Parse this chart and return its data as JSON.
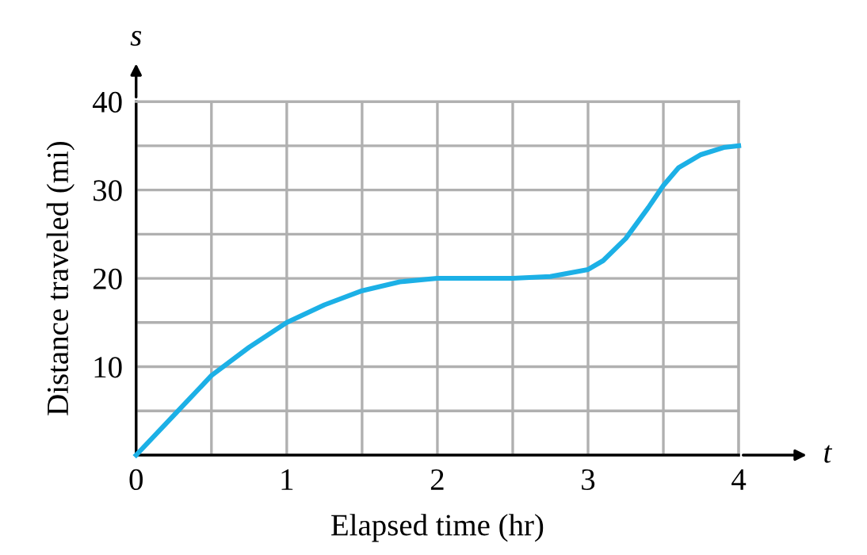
{
  "chart_data": {
    "type": "line",
    "xlabel": "Elapsed time (hr)",
    "ylabel": "Distance traveled (mi)",
    "annotations": [
      "s",
      "t"
    ],
    "x": [
      0,
      0.25,
      0.5,
      0.75,
      1,
      1.25,
      1.5,
      1.75,
      2,
      2.25,
      2.5,
      2.75,
      3,
      3.1,
      3.25,
      3.4,
      3.5,
      3.6,
      3.75,
      3.9,
      4
    ],
    "series": [
      {
        "color": "#1cb0e6",
        "values": [
          0,
          4.5,
          9,
          12.2,
          15,
          17,
          18.6,
          19.6,
          20,
          20,
          20,
          20.2,
          21,
          22,
          24.5,
          28,
          30.5,
          32.5,
          34,
          34.8,
          35
        ]
      }
    ],
    "xlim": [
      0,
      4
    ],
    "ylim": [
      0,
      40
    ],
    "xticks": [
      0,
      {
        "value": 0.5,
        "label": null
      },
      1,
      {
        "value": 1.5,
        "label": null
      },
      2,
      {
        "value": 2.5,
        "label": null
      },
      3,
      {
        "value": 3.5,
        "label": null
      },
      4
    ],
    "yticks": [
      {
        "value": 0,
        "label": null
      },
      {
        "value": 5,
        "label": null
      },
      10,
      {
        "value": 15,
        "label": null
      },
      20,
      {
        "value": 25,
        "label": null
      },
      30,
      {
        "value": 35,
        "label": null
      },
      40
    ],
    "grid": true,
    "marker": "none",
    "line_style": "solid",
    "legend": false
  }
}
